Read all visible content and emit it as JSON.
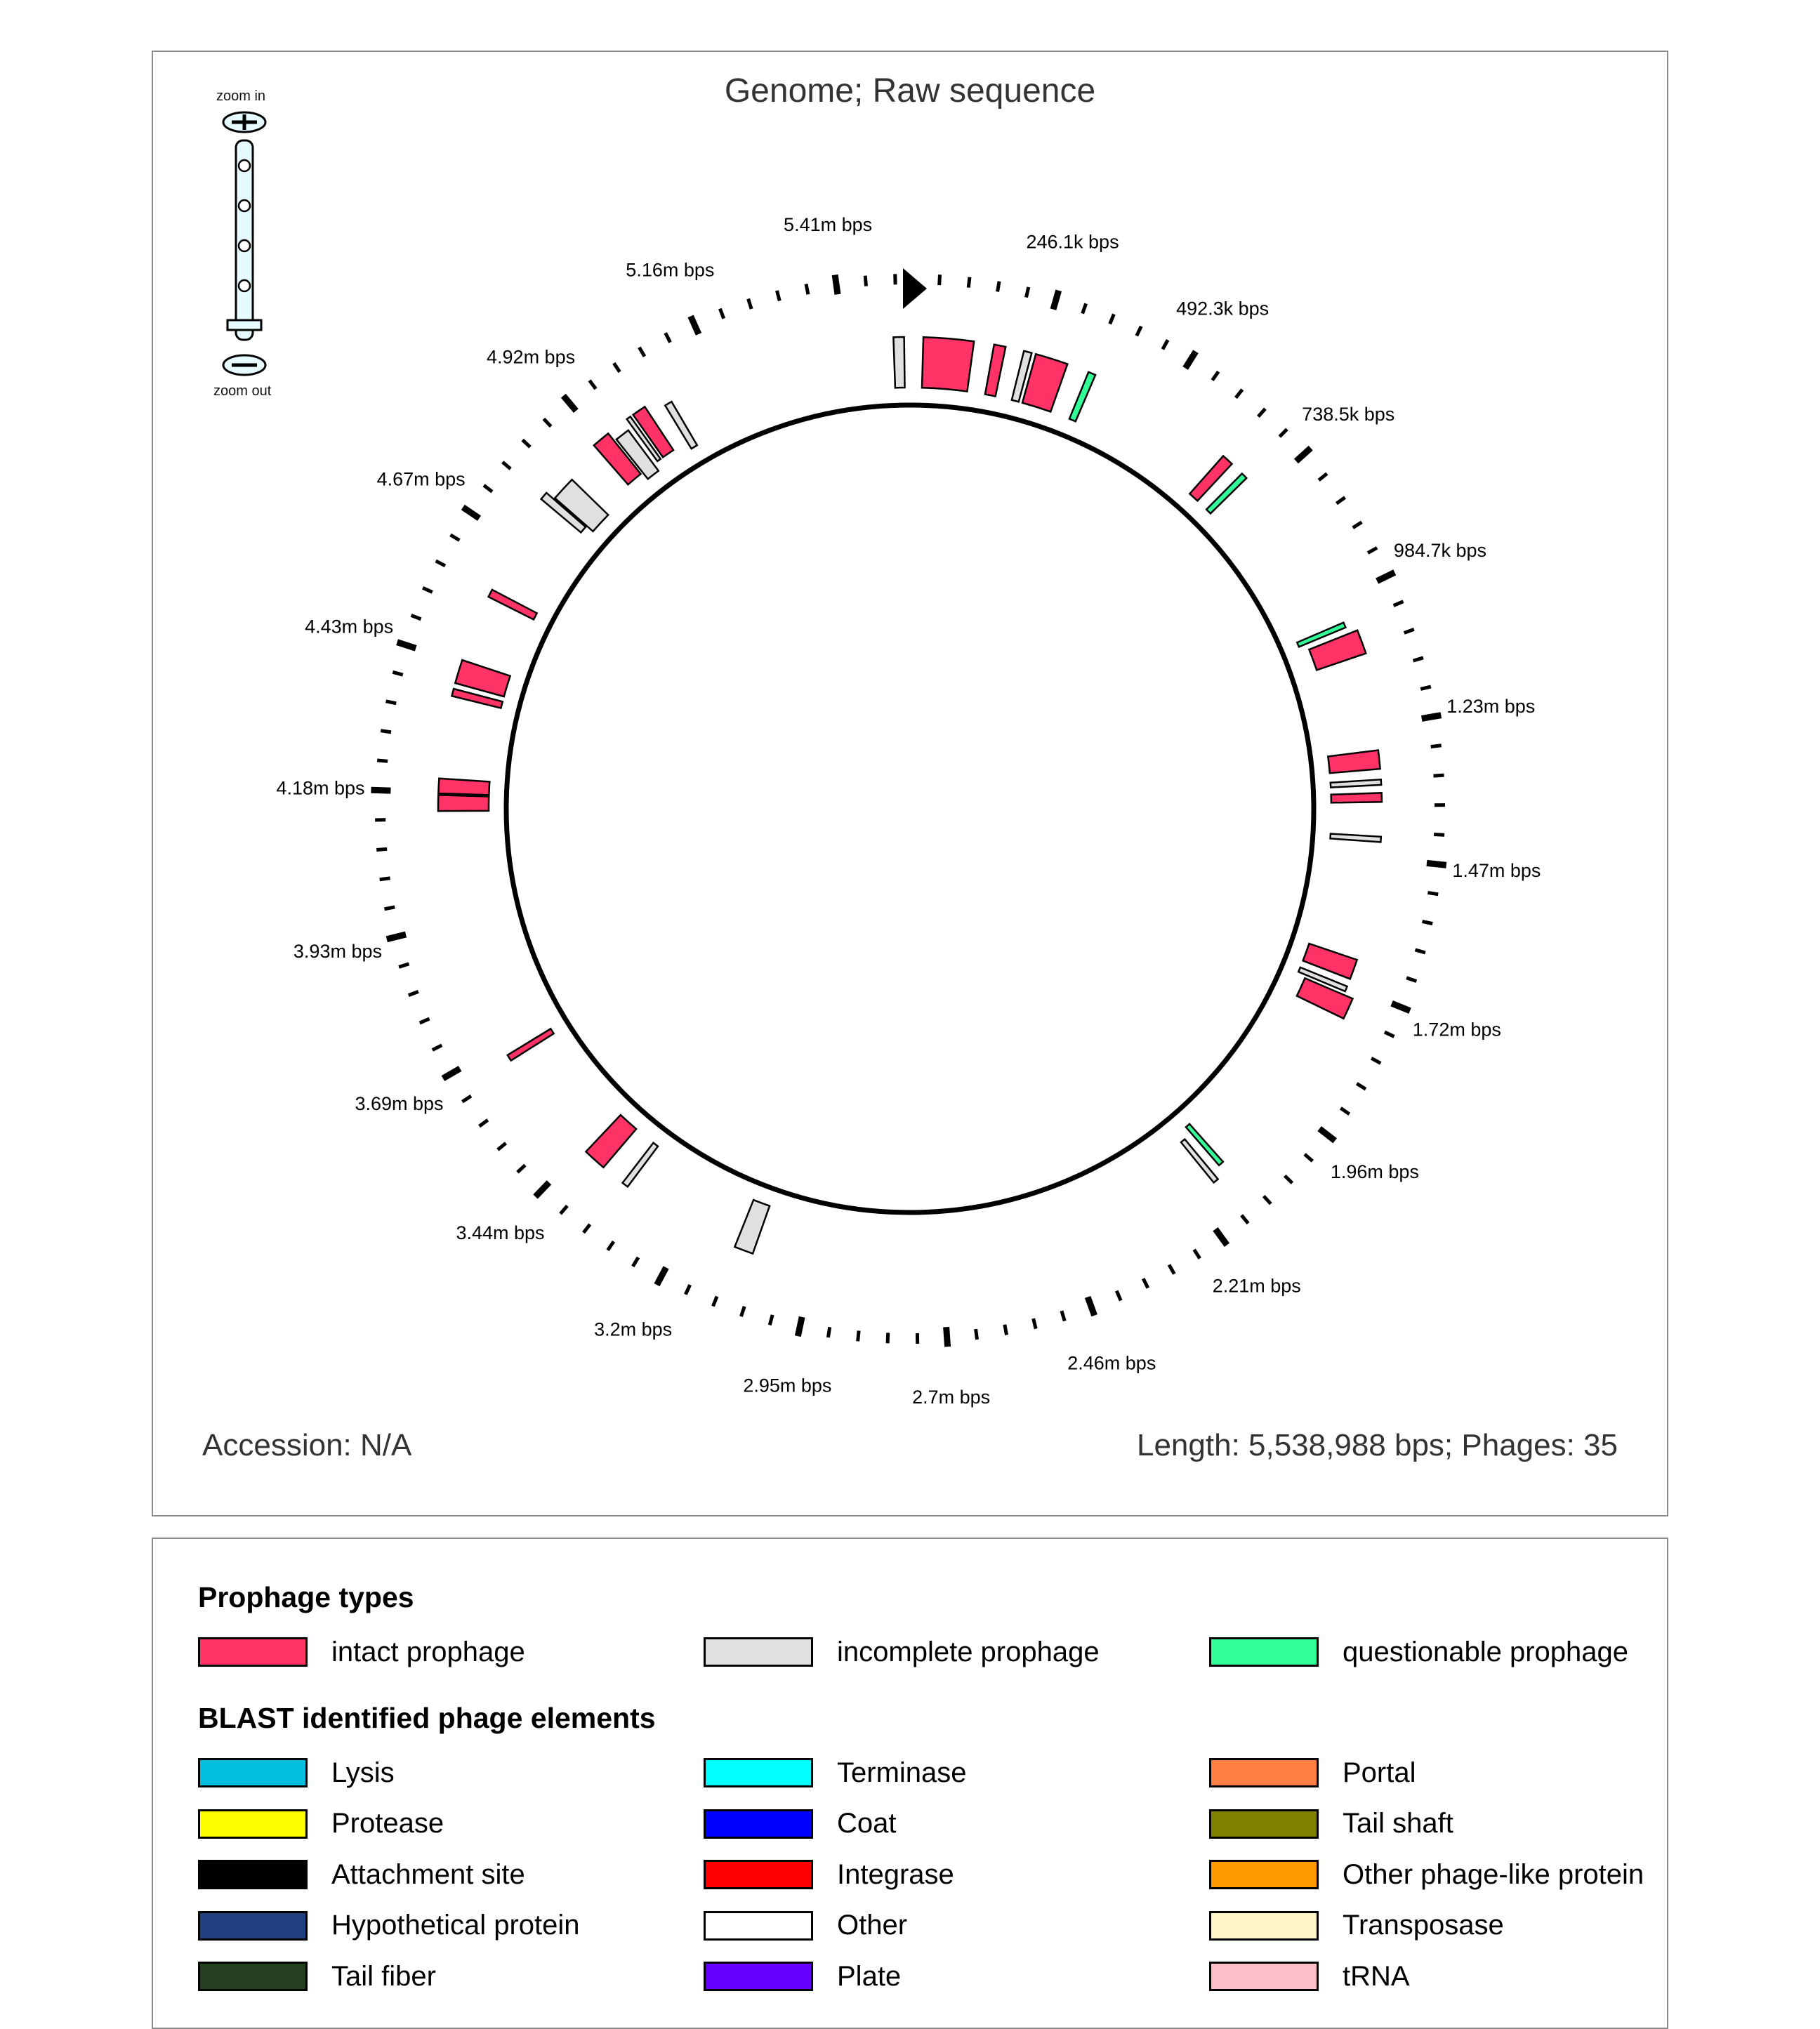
{
  "genome_map": {
    "title": "Genome; Raw sequence",
    "accession_text": "Accession: N/A",
    "length_text": "Length: 5,538,988 bps; Phages: 35",
    "zoom_in_label": "zoom in",
    "zoom_out_label": "zoom out",
    "genome_length_bps": 5538988,
    "tick_labels": [
      "246.1k bps",
      "492.3k bps",
      "738.5k bps",
      "984.7k bps",
      "1.23m bps",
      "1.47m bps",
      "1.72m bps",
      "1.96m bps",
      "2.21m bps",
      "2.46m bps",
      "2.7m bps",
      "2.95m bps",
      "3.2m bps",
      "3.44m bps",
      "3.69m bps",
      "3.93m bps",
      "4.18m bps",
      "4.43m bps",
      "4.67m bps",
      "4.92m bps",
      "5.16m bps",
      "5.41m bps"
    ],
    "regions": [
      {
        "start": 5508000,
        "end": 5528000,
        "type": "incomplete",
        "ring": 0
      },
      {
        "start": 25000,
        "end": 120000,
        "type": "intact",
        "ring": 0
      },
      {
        "start": 158000,
        "end": 180000,
        "type": "intact",
        "ring": 0
      },
      {
        "start": 215000,
        "end": 230000,
        "type": "incomplete",
        "ring": 0
      },
      {
        "start": 238000,
        "end": 300000,
        "type": "intact",
        "ring": 0
      },
      {
        "start": 342000,
        "end": 356000,
        "type": "questionable",
        "ring": 0
      },
      {
        "start": 640000,
        "end": 662000,
        "type": "intact",
        "ring": 0
      },
      {
        "start": 688000,
        "end": 700000,
        "type": "questionable",
        "ring": 0
      },
      {
        "start": 1027000,
        "end": 1037000,
        "type": "questionable",
        "ring": 0
      },
      {
        "start": 1050000,
        "end": 1095000,
        "type": "intact",
        "ring": 1
      },
      {
        "start": 1275000,
        "end": 1310000,
        "type": "intact",
        "ring": 0
      },
      {
        "start": 1330000,
        "end": 1340000,
        "type": "incomplete",
        "ring": 0
      },
      {
        "start": 1355000,
        "end": 1372000,
        "type": "intact",
        "ring": 0
      },
      {
        "start": 1437000,
        "end": 1447000,
        "type": "incomplete",
        "ring": 0
      },
      {
        "start": 1672000,
        "end": 1710000,
        "type": "intact",
        "ring": 0
      },
      {
        "start": 1725000,
        "end": 1735000,
        "type": "incomplete",
        "ring": 0
      },
      {
        "start": 1742000,
        "end": 1782000,
        "type": "intact",
        "ring": 1
      },
      {
        "start": 2130000,
        "end": 2140000,
        "type": "questionable",
        "ring": 0
      },
      {
        "start": 2158000,
        "end": 2168000,
        "type": "incomplete",
        "ring": 1
      },
      {
        "start": 3069000,
        "end": 3105000,
        "type": "incomplete",
        "ring": 0
      },
      {
        "start": 3335000,
        "end": 3347000,
        "type": "incomplete",
        "ring": 0
      },
      {
        "start": 3393000,
        "end": 3437000,
        "type": "intact",
        "ring": 0
      },
      {
        "start": 3658000,
        "end": 3670000,
        "type": "intact",
        "ring": 0
      },
      {
        "start": 4150000,
        "end": 4180000,
        "type": "intact",
        "ring": 0
      },
      {
        "start": 4183000,
        "end": 4211000,
        "type": "intact",
        "ring": 0
      },
      {
        "start": 4367000,
        "end": 4381000,
        "type": "intact",
        "ring": 0
      },
      {
        "start": 4392000,
        "end": 4437000,
        "type": "intact",
        "ring": 0
      },
      {
        "start": 4565000,
        "end": 4580000,
        "type": "intact",
        "ring": 0
      },
      {
        "start": 4770000,
        "end": 4785000,
        "type": "incomplete",
        "ring": 1
      },
      {
        "start": 4788000,
        "end": 4835000,
        "type": "incomplete",
        "ring": 0
      },
      {
        "start": 4908000,
        "end": 4942000,
        "type": "intact",
        "ring": 1
      },
      {
        "start": 4947000,
        "end": 4975000,
        "type": "incomplete",
        "ring": 0
      },
      {
        "start": 4985000,
        "end": 4993000,
        "type": "incomplete",
        "ring": 1
      },
      {
        "start": 4999000,
        "end": 5025000,
        "type": "intact",
        "ring": 1
      },
      {
        "start": 5058000,
        "end": 5072000,
        "type": "incomplete",
        "ring": 0
      }
    ]
  },
  "colors": {
    "intact": "#ff3366",
    "incomplete": "#e0e0e0",
    "questionable": "#33ff99",
    "backbone": "#000000"
  },
  "legend": {
    "prophage_heading": "Prophage types",
    "prophage_types": [
      {
        "label": "intact prophage",
        "color": "#ff3366"
      },
      {
        "label": "incomplete prophage",
        "color": "#e0e0e0"
      },
      {
        "label": "questionable prophage",
        "color": "#33ff99"
      }
    ],
    "blast_heading": "BLAST identified phage elements",
    "blast_elements": [
      {
        "label": "Lysis",
        "color": "#00bfdf"
      },
      {
        "label": "Terminase",
        "color": "#00ffff"
      },
      {
        "label": "Portal",
        "color": "#ff8040"
      },
      {
        "label": "Protease",
        "color": "#ffff00"
      },
      {
        "label": "Coat",
        "color": "#0000ff"
      },
      {
        "label": "Tail shaft",
        "color": "#808000"
      },
      {
        "label": "Attachment site",
        "color": "#000000"
      },
      {
        "label": "Integrase",
        "color": "#ff0000"
      },
      {
        "label": "Other phage-like protein",
        "color": "#ff9900"
      },
      {
        "label": "Hypothetical protein",
        "color": "#1f3f7f"
      },
      {
        "label": "Other",
        "color": "#ffffff"
      },
      {
        "label": "Transposase",
        "color": "#fff5c8"
      },
      {
        "label": "Tail fiber",
        "color": "#244020"
      },
      {
        "label": "Plate",
        "color": "#6600ff"
      },
      {
        "label": "tRNA",
        "color": "#ffc0cb"
      }
    ]
  }
}
